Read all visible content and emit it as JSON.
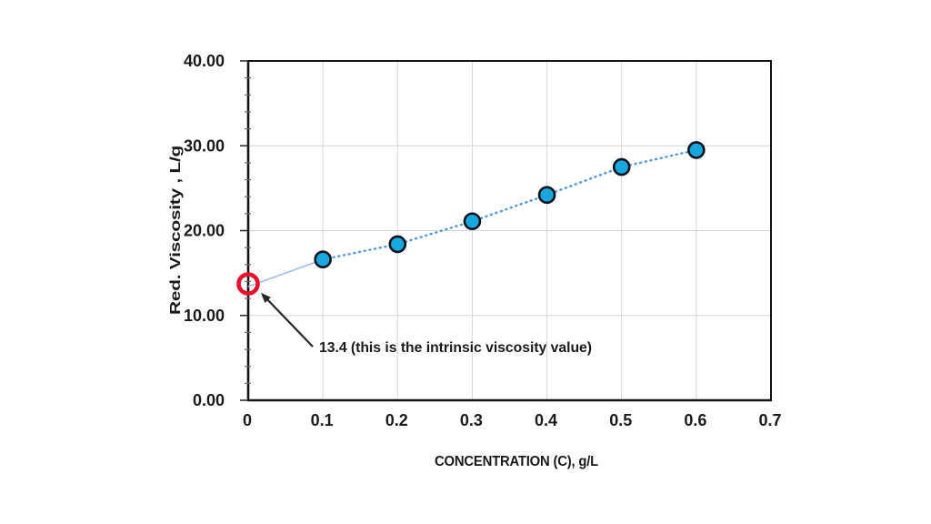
{
  "chart_data": {
    "type": "scatter",
    "title": "",
    "xlabel": "CONCENTRATION (C), g/L",
    "ylabel": "Red. Viscosity , L/g",
    "xlim": [
      0,
      0.7
    ],
    "ylim": [
      0,
      40
    ],
    "grid": true,
    "x_tick_values": [
      0,
      0.1,
      0.2,
      0.3,
      0.4,
      0.5,
      0.6,
      0.7
    ],
    "x_tick_labels": [
      "0",
      "0.1",
      "0.2",
      "0.3",
      "0.4",
      "0.5",
      "0.6",
      "0.7"
    ],
    "y_tick_values": [
      0,
      10,
      20,
      30,
      40
    ],
    "y_tick_labels": [
      "0.00",
      "10.00",
      "20.00",
      "30.00",
      "40.00"
    ],
    "y_minor_tick_step": 2,
    "series": [
      {
        "name": "reduced-viscosity",
        "x": [
          0.1,
          0.2,
          0.3,
          0.4,
          0.5,
          0.6
        ],
        "y": [
          16.6,
          18.4,
          21.1,
          24.2,
          27.5,
          29.5
        ],
        "marker_fill": "#18a8db",
        "marker_edge": "#0b1220"
      }
    ],
    "trendline": {
      "style": "dotted",
      "dotted_color": "#5b9bd5",
      "solid_extrapolation_color": "#9cc0e4",
      "y_intercept": 13.4
    },
    "intercept_point": {
      "x": 0,
      "y": 13.4,
      "marker": "open-red-circle",
      "color": "#e8112d"
    },
    "annotation": {
      "text": "13.4 (this is the intrinsic viscosity value)",
      "value": 13.4,
      "arrow_color": "#262626"
    }
  }
}
